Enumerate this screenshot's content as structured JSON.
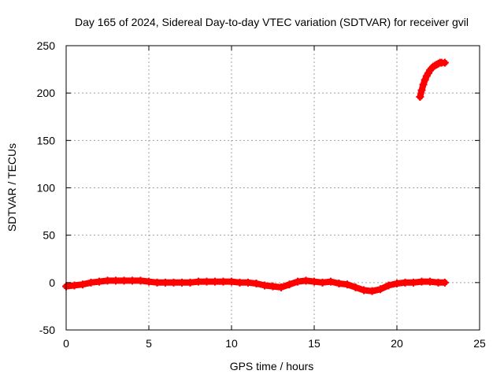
{
  "chart_data": {
    "type": "scatter",
    "title": "Day 165 of 2024, Sidereal Day-to-day VTEC variation (SDTVAR) for receiver gvil",
    "xlabel": "GPS time / hours",
    "ylabel": "SDTVAR / TECUs",
    "xlim": [
      0,
      25
    ],
    "ylim": [
      -50,
      250
    ],
    "x_ticks": [
      "0",
      "5",
      "10",
      "15",
      "20",
      "25"
    ],
    "y_ticks": [
      "-50",
      "0",
      "50",
      "100",
      "150",
      "200",
      "250"
    ],
    "grid": true,
    "legend": "none",
    "marker": "plus",
    "color": "#ff0000",
    "series": [
      {
        "points": [
          [
            0.0,
            -4
          ],
          [
            0.5,
            -3
          ],
          [
            1.0,
            -2
          ],
          [
            1.5,
            0
          ],
          [
            2.0,
            1
          ],
          [
            2.5,
            2
          ],
          [
            3.0,
            2
          ],
          [
            3.5,
            2
          ],
          [
            4.0,
            2
          ],
          [
            4.5,
            2
          ],
          [
            5.0,
            1
          ],
          [
            5.5,
            0
          ],
          [
            6.0,
            0
          ],
          [
            6.5,
            0
          ],
          [
            7.0,
            0
          ],
          [
            7.5,
            0
          ],
          [
            8.0,
            1
          ],
          [
            8.5,
            1
          ],
          [
            9.0,
            1
          ],
          [
            9.5,
            1
          ],
          [
            10.0,
            1
          ],
          [
            10.5,
            0
          ],
          [
            11.0,
            0
          ],
          [
            11.5,
            -1
          ],
          [
            12.0,
            -3
          ],
          [
            12.5,
            -4
          ],
          [
            13.0,
            -5
          ],
          [
            13.5,
            -2
          ],
          [
            14.0,
            1
          ],
          [
            14.5,
            2
          ],
          [
            15.0,
            1
          ],
          [
            15.5,
            0
          ],
          [
            16.0,
            1
          ],
          [
            16.5,
            -1
          ],
          [
            17.0,
            -2
          ],
          [
            17.5,
            -5
          ],
          [
            18.0,
            -8
          ],
          [
            18.5,
            -9
          ],
          [
            19.0,
            -7
          ],
          [
            19.5,
            -3
          ],
          [
            20.0,
            -1
          ],
          [
            20.5,
            0
          ],
          [
            21.0,
            0
          ],
          [
            21.5,
            1
          ],
          [
            22.0,
            1
          ],
          [
            22.5,
            0
          ],
          [
            22.9,
            0
          ]
        ]
      },
      {
        "points": [
          [
            21.4,
            196
          ],
          [
            21.5,
            203
          ],
          [
            21.6,
            209
          ],
          [
            21.7,
            214
          ],
          [
            21.8,
            218
          ],
          [
            21.9,
            221
          ],
          [
            22.0,
            224
          ],
          [
            22.1,
            226
          ],
          [
            22.2,
            228
          ],
          [
            22.3,
            229
          ],
          [
            22.4,
            230
          ],
          [
            22.5,
            231
          ],
          [
            22.6,
            232
          ],
          [
            22.7,
            232
          ],
          [
            22.9,
            232
          ]
        ]
      }
    ]
  }
}
